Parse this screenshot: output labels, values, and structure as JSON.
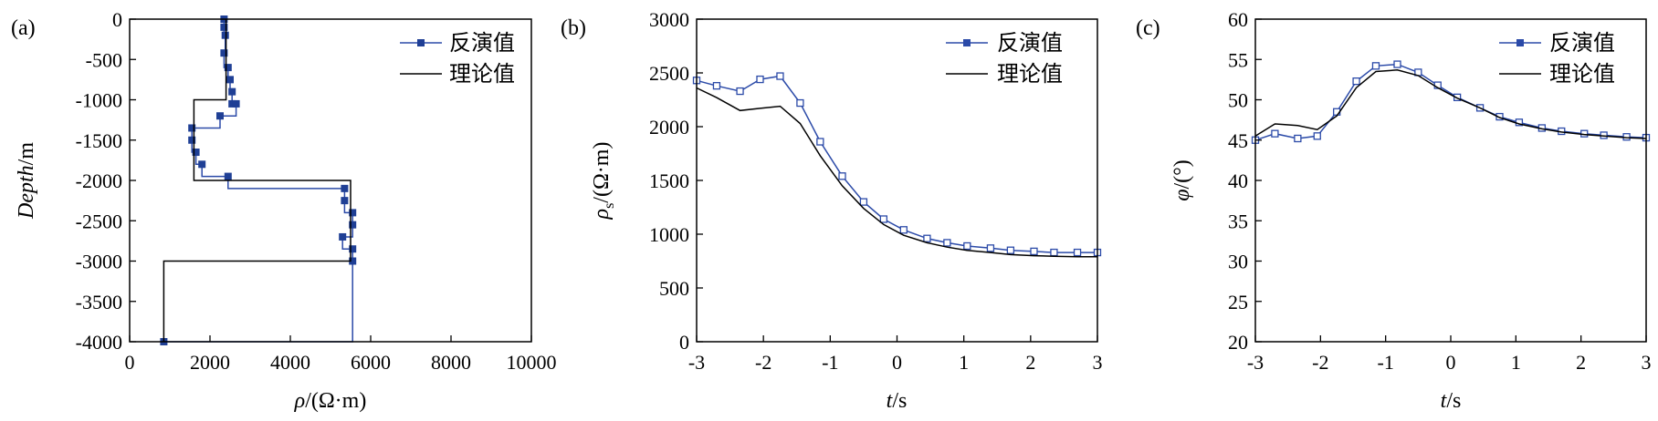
{
  "legend": {
    "inverted": "反演值",
    "theory": "理论值"
  },
  "colors": {
    "inverted": "#2b4aa8",
    "theory": "#000000",
    "marker_fill_a": "#1f3f95"
  },
  "chart_data": [
    {
      "type": "line",
      "panel_label": "(a)",
      "xlabel": "ρ/(Ω·m)",
      "ylabel": "Depth/m",
      "xlim": [
        0,
        10000
      ],
      "ylim": [
        -4000,
        0
      ],
      "xticks": [
        "0",
        "2000",
        "4000",
        "6000",
        "8000",
        "10000"
      ],
      "yticks": [
        "0",
        "-500",
        "-1000",
        "-1500",
        "-2000",
        "-2500",
        "-3000",
        "-3500",
        "-4000"
      ],
      "legend_position": "top-right",
      "grid": false,
      "series": [
        {
          "name": "反演值",
          "marker": "filled-square",
          "rho": [
            2350,
            2350,
            2380,
            2350,
            2450,
            2500,
            2550,
            2550,
            2650,
            2250,
            1550,
            1550,
            1650,
            1800,
            2450,
            5350,
            5350,
            5550,
            5550,
            5300,
            5550,
            5550,
            850
          ],
          "depth": [
            0,
            -100,
            -200,
            -420,
            -600,
            -750,
            -900,
            -1050,
            -1050,
            -1200,
            -1350,
            -1500,
            -1650,
            -1800,
            -1950,
            -2100,
            -2250,
            -2400,
            -2550,
            -2700,
            -2850,
            -3000,
            -4000
          ]
        },
        {
          "name": "理论值",
          "marker": "none",
          "rho": [
            2400,
            2400,
            1600,
            1600,
            5500,
            5500,
            850,
            850
          ],
          "depth": [
            0,
            -1000,
            -1000,
            -2000,
            -2000,
            -3000,
            -3000,
            -4000
          ]
        }
      ]
    },
    {
      "type": "line",
      "panel_label": "(b)",
      "xlabel": "t/s",
      "ylabel": "ρs/(Ω·m)",
      "xlim": [
        -3,
        3
      ],
      "ylim": [
        0,
        3000
      ],
      "xticks": [
        "-3",
        "-2",
        "-1",
        "0",
        "1",
        "2",
        "3"
      ],
      "yticks": [
        "0",
        "500",
        "1000",
        "1500",
        "2000",
        "2500",
        "3000"
      ],
      "legend_position": "top-right",
      "grid": false,
      "series": [
        {
          "name": "反演值",
          "marker": "open-square",
          "x": [
            -3,
            -2.7,
            -2.35,
            -2.05,
            -1.75,
            -1.45,
            -1.15,
            -0.82,
            -0.5,
            -0.2,
            0.1,
            0.45,
            0.75,
            1.05,
            1.4,
            1.7,
            2.05,
            2.35,
            2.7,
            3
          ],
          "y": [
            2430,
            2380,
            2330,
            2440,
            2470,
            2220,
            1860,
            1540,
            1300,
            1140,
            1040,
            960,
            920,
            890,
            870,
            850,
            840,
            830,
            830,
            830
          ]
        },
        {
          "name": "理论值",
          "marker": "none",
          "x": [
            -3,
            -2.7,
            -2.35,
            -2.05,
            -1.75,
            -1.45,
            -1.15,
            -0.82,
            -0.5,
            -0.2,
            0.1,
            0.45,
            0.75,
            1.05,
            1.4,
            1.7,
            2.05,
            2.35,
            2.7,
            3
          ],
          "y": [
            2360,
            2270,
            2150,
            2170,
            2190,
            2030,
            1730,
            1450,
            1240,
            1090,
            990,
            920,
            880,
            850,
            830,
            810,
            800,
            795,
            790,
            790
          ]
        }
      ]
    },
    {
      "type": "line",
      "panel_label": "(c)",
      "xlabel": "t/s",
      "ylabel": "φ/(°)",
      "xlim": [
        -3,
        3
      ],
      "ylim": [
        20,
        60
      ],
      "xticks": [
        "-3",
        "-2",
        "-1",
        "0",
        "1",
        "2",
        "3"
      ],
      "yticks": [
        "20",
        "25",
        "30",
        "35",
        "40",
        "45",
        "50",
        "55",
        "60"
      ],
      "legend_position": "top-right",
      "grid": false,
      "series": [
        {
          "name": "反演值",
          "marker": "open-square",
          "x": [
            -3,
            -2.7,
            -2.35,
            -2.05,
            -1.75,
            -1.45,
            -1.15,
            -0.82,
            -0.5,
            -0.2,
            0.1,
            0.45,
            0.75,
            1.05,
            1.4,
            1.7,
            2.05,
            2.35,
            2.7,
            3
          ],
          "y": [
            45,
            45.8,
            45.2,
            45.5,
            48.5,
            52.3,
            54.2,
            54.4,
            53.4,
            51.8,
            50.3,
            49.0,
            47.9,
            47.2,
            46.5,
            46.1,
            45.8,
            45.6,
            45.4,
            45.3
          ]
        },
        {
          "name": "理论值",
          "marker": "none",
          "x": [
            -3,
            -2.7,
            -2.35,
            -2.05,
            -1.75,
            -1.45,
            -1.15,
            -0.82,
            -0.5,
            -0.2,
            0.1,
            0.45,
            0.75,
            1.05,
            1.4,
            1.7,
            2.05,
            2.35,
            2.7,
            3
          ],
          "y": [
            45.5,
            47.0,
            46.8,
            46.3,
            48.0,
            51.5,
            53.5,
            53.7,
            53.0,
            51.5,
            50.2,
            49.0,
            47.8,
            47.0,
            46.4,
            46.0,
            45.7,
            45.5,
            45.3,
            45.2
          ]
        }
      ]
    }
  ]
}
